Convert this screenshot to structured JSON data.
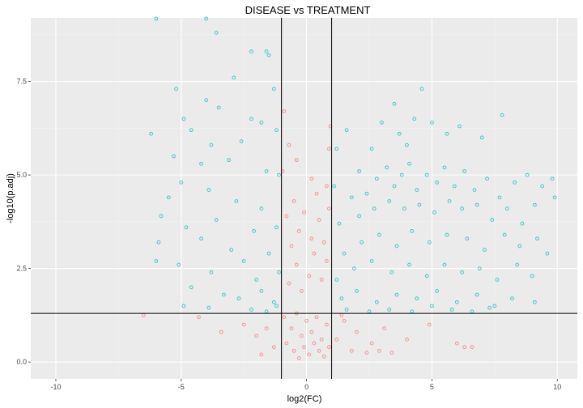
{
  "chart_data": {
    "type": "scatter",
    "title": "DISEASE vs TREATMENT",
    "xlabel": "log2(FC)",
    "ylabel": "-log10(p.adj)",
    "xlim": [
      -11,
      10.8
    ],
    "ylim": [
      -0.45,
      9.2
    ],
    "x_ticks": [
      -10,
      -5,
      0,
      5,
      10
    ],
    "x_tick_labels": [
      "-10",
      "-5",
      "0",
      "5",
      "10"
    ],
    "y_ticks": [
      0,
      2.5,
      5,
      7.5
    ],
    "y_tick_labels": [
      "0.0",
      "2.5",
      "5.0",
      "7.5"
    ],
    "grid": true,
    "legend": "none",
    "reference_lines": {
      "vertical": [
        -1,
        1
      ],
      "horizontal": [
        1.3
      ]
    },
    "colors": {
      "panel_bg": "#EBEBEB",
      "grid_major": "#FFFFFF",
      "grid_minor": "#F2F2F2",
      "not_significant": "#F8766D",
      "significant": "#00BFC4",
      "reference_line": "#000000"
    },
    "point_summary": {
      "not_significant": "about 3500 genes inside |log2FC| < 1 or p.adj above 0.05, concentrated near x = 0 and y < 3, a few up to y ≈ 6.7",
      "significant": "about 4000 genes outside the cutoffs, densest around x 3–6, y 3.5–5.5, and around x -2 to -1, y 1.5–3"
    },
    "series": [
      {
        "color_key": "significant",
        "points": [
          [
            -6,
            9.2
          ],
          [
            -4,
            9.2
          ],
          [
            -3.6,
            8.8
          ],
          [
            -2.2,
            8.3
          ],
          [
            -1.6,
            8.3
          ],
          [
            -1.5,
            8.2
          ],
          [
            -5.2,
            7.3
          ],
          [
            -4,
            7
          ],
          [
            -2.9,
            7.6
          ],
          [
            -1.3,
            7.3
          ],
          [
            -4.9,
            6.5
          ],
          [
            -3.5,
            6.8
          ],
          [
            -2.2,
            6.5
          ],
          [
            -1.8,
            6.4
          ],
          [
            -6.2,
            6.1
          ],
          [
            -4.6,
            6.2
          ],
          [
            -3.8,
            5.8
          ],
          [
            -2.6,
            5.9
          ],
          [
            -1.2,
            6.2
          ],
          [
            -5.3,
            5.5
          ],
          [
            -4.2,
            5.3
          ],
          [
            -3.1,
            5.4
          ],
          [
            -1.6,
            5.1
          ],
          [
            -1.1,
            5
          ],
          [
            -5,
            4.8
          ],
          [
            -5.5,
            4.4
          ],
          [
            -3.9,
            4.6
          ],
          [
            -2.8,
            4.3
          ],
          [
            -1.8,
            4.1
          ],
          [
            -5.8,
            3.9
          ],
          [
            -4.8,
            3.6
          ],
          [
            -3.6,
            3.8
          ],
          [
            -2.1,
            3.5
          ],
          [
            -1.2,
            3.6
          ],
          [
            -5.9,
            3.2
          ],
          [
            -4.2,
            3.3
          ],
          [
            -3,
            3
          ],
          [
            -2.5,
            2.7
          ],
          [
            -1.5,
            2.9
          ],
          [
            -6,
            2.7
          ],
          [
            -5.1,
            2.6
          ],
          [
            -3.8,
            2.4
          ],
          [
            -2,
            2.2
          ],
          [
            -1.1,
            2.4
          ],
          [
            -4.6,
            2
          ],
          [
            -3.3,
            1.8
          ],
          [
            -2.7,
            1.7
          ],
          [
            -1.8,
            1.9
          ],
          [
            -1.3,
            1.6
          ],
          [
            -4.9,
            1.5
          ],
          [
            -3.9,
            1.45
          ],
          [
            -2.2,
            1.4
          ],
          [
            -1.6,
            1.35
          ],
          [
            -1.2,
            1.5
          ],
          [
            1.3,
            3.7
          ],
          [
            1.8,
            4.4
          ],
          [
            2.1,
            5.1
          ],
          [
            2.6,
            5.7
          ],
          [
            3,
            6.4
          ],
          [
            3.5,
            6.9
          ],
          [
            3.7,
            6.1
          ],
          [
            4,
            5.8
          ],
          [
            4.3,
            6.5
          ],
          [
            4.6,
            7.3
          ],
          [
            5,
            6.4
          ],
          [
            5.6,
            6.1
          ],
          [
            6.1,
            6.3
          ],
          [
            7,
            6
          ],
          [
            7.8,
            6.6
          ],
          [
            2.4,
            4.5
          ],
          [
            2.8,
            4.9
          ],
          [
            3.2,
            5.2
          ],
          [
            3.5,
            4.7
          ],
          [
            3.8,
            5
          ],
          [
            4.1,
            5.3
          ],
          [
            4.4,
            4.6
          ],
          [
            4.8,
            5
          ],
          [
            5.2,
            4.8
          ],
          [
            5.5,
            5.2
          ],
          [
            5.9,
            4.7
          ],
          [
            6.3,
            5.1
          ],
          [
            6.7,
            4.6
          ],
          [
            7.2,
            4.9
          ],
          [
            7.7,
            4.4
          ],
          [
            8.3,
            4.8
          ],
          [
            8.8,
            5
          ],
          [
            9.4,
            4.7
          ],
          [
            9.8,
            4.9
          ],
          [
            2.1,
            3.9
          ],
          [
            2.7,
            4.1
          ],
          [
            3.3,
            4.3
          ],
          [
            3.9,
            4.1
          ],
          [
            4.5,
            4.2
          ],
          [
            5.1,
            4
          ],
          [
            5.7,
            4.3
          ],
          [
            6.2,
            4.1
          ],
          [
            6.8,
            4.2
          ],
          [
            7.4,
            3.8
          ],
          [
            8,
            4.1
          ],
          [
            8.6,
            3.7
          ],
          [
            9.1,
            4.2
          ],
          [
            1.5,
            2.9
          ],
          [
            2.2,
            3.2
          ],
          [
            2.9,
            3.4
          ],
          [
            3.6,
            3.1
          ],
          [
            4.2,
            3.5
          ],
          [
            4.9,
            3.2
          ],
          [
            5.6,
            3.4
          ],
          [
            6.4,
            3.3
          ],
          [
            7.1,
            3
          ],
          [
            7.9,
            3.4
          ],
          [
            8.5,
            3.1
          ],
          [
            9.2,
            3.3
          ],
          [
            1.2,
            2.2
          ],
          [
            1.9,
            2.5
          ],
          [
            2.6,
            2.7
          ],
          [
            3.4,
            2.4
          ],
          [
            4.1,
            2.6
          ],
          [
            4.8,
            2.3
          ],
          [
            5.5,
            2.6
          ],
          [
            6.2,
            2.4
          ],
          [
            6.9,
            2.5
          ],
          [
            7.6,
            2.2
          ],
          [
            8.4,
            2.6
          ],
          [
            9,
            2.3
          ],
          [
            1.4,
            1.7
          ],
          [
            2,
            1.9
          ],
          [
            2.8,
            1.6
          ],
          [
            3.6,
            1.8
          ],
          [
            4.4,
            1.7
          ],
          [
            5.2,
            1.9
          ],
          [
            6,
            1.6
          ],
          [
            6.8,
            1.8
          ],
          [
            7.5,
            1.5
          ],
          [
            8.2,
            1.7
          ],
          [
            9.1,
            1.6
          ],
          [
            1.6,
            1.4
          ],
          [
            2.5,
            1.35
          ],
          [
            3.3,
            1.4
          ],
          [
            4.2,
            1.35
          ],
          [
            5,
            1.5
          ],
          [
            5.8,
            1.4
          ],
          [
            6.6,
            1.35
          ],
          [
            7.3,
            1.45
          ],
          [
            1.1,
            4.7
          ],
          [
            1.2,
            5.7
          ],
          [
            1.6,
            6.2
          ],
          [
            9.6,
            2.9
          ],
          [
            9.9,
            4.4
          ]
        ]
      },
      {
        "color_key": "not_significant",
        "points": [
          [
            -0.9,
            1.2
          ],
          [
            -0.6,
            0.9
          ],
          [
            -0.4,
            1.3
          ],
          [
            -0.2,
            0.7
          ],
          [
            0,
            1.1
          ],
          [
            0.2,
            0.8
          ],
          [
            0.4,
            1.2
          ],
          [
            0.6,
            0.6
          ],
          [
            0.8,
            1
          ],
          [
            -0.8,
            0.5
          ],
          [
            -0.5,
            0.3
          ],
          [
            -0.3,
            0.1
          ],
          [
            -0.1,
            0.4
          ],
          [
            0.1,
            0.2
          ],
          [
            0.3,
            0.5
          ],
          [
            0.5,
            0.3
          ],
          [
            0.7,
            0.15
          ],
          [
            0.9,
            0.4
          ],
          [
            -0.7,
            2.1
          ],
          [
            -0.4,
            2.6
          ],
          [
            -0.2,
            1.9
          ],
          [
            0.1,
            2.3
          ],
          [
            0.3,
            2.9
          ],
          [
            0.6,
            2.2
          ],
          [
            0.8,
            2.7
          ],
          [
            -0.6,
            3.1
          ],
          [
            -0.3,
            3.5
          ],
          [
            0.2,
            3.3
          ],
          [
            0.5,
            3.8
          ],
          [
            0.7,
            3.2
          ],
          [
            -0.8,
            3.9
          ],
          [
            -0.5,
            4.3
          ],
          [
            -0.1,
            4
          ],
          [
            0.4,
            4.5
          ],
          [
            0.9,
            4.1
          ],
          [
            -0.4,
            5.4
          ],
          [
            0.2,
            4.9
          ],
          [
            0.8,
            4.7
          ],
          [
            -0.9,
            6.7
          ],
          [
            -0.7,
            5.8
          ],
          [
            0.9,
            5.7
          ],
          [
            0.95,
            6.3
          ],
          [
            -0.95,
            5.1
          ],
          [
            -2.5,
            1
          ],
          [
            -2,
            0.7
          ],
          [
            -1.6,
            0.9
          ],
          [
            -1.3,
            0.4
          ],
          [
            -3.4,
            0.8
          ],
          [
            -4.3,
            1.2
          ],
          [
            -6.5,
            1.25
          ],
          [
            -1.8,
            0.2
          ],
          [
            1.5,
            1.1
          ],
          [
            2,
            0.8
          ],
          [
            2.6,
            0.5
          ],
          [
            3.1,
            0.9
          ],
          [
            1.8,
            0.3
          ],
          [
            2.4,
            0.25
          ],
          [
            2.9,
            0.3
          ],
          [
            3.4,
            0.25
          ],
          [
            4,
            0.6
          ],
          [
            4.9,
            1
          ],
          [
            6,
            0.5
          ],
          [
            6.3,
            0.4
          ],
          [
            6.6,
            0.4
          ],
          [
            1.2,
            0.6
          ],
          [
            1.4,
            1.25
          ]
        ]
      }
    ]
  }
}
